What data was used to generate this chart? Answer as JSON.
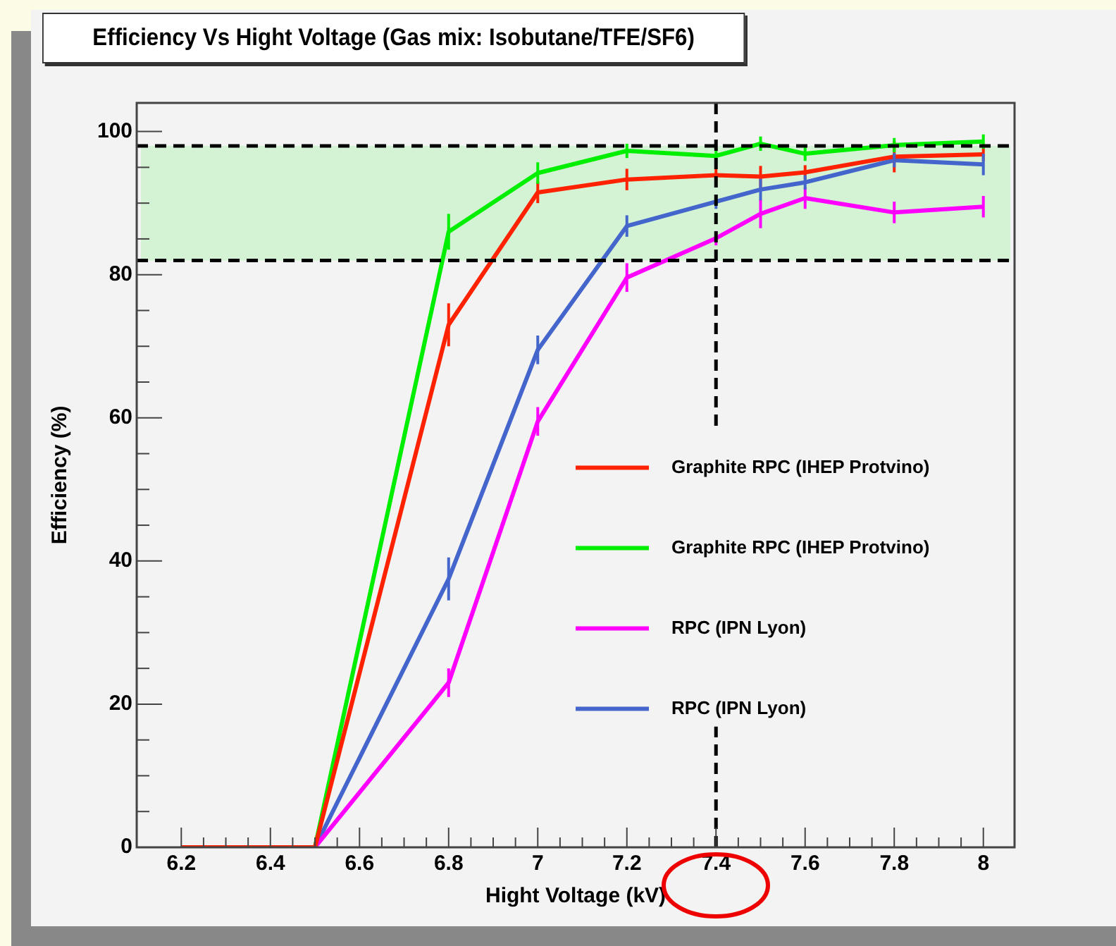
{
  "chart_data": {
    "type": "line",
    "title": "Efficiency Vs Hight Voltage (Gas mix: Isobutane/TFE/SF6)",
    "xlabel": "Hight Voltage (kV)",
    "ylabel": "Efficiency (%)",
    "xlim": [
      6.1,
      8.07
    ],
    "xticks": [
      6.2,
      6.4,
      6.6,
      6.8,
      {
        "value": 7,
        "label": "7"
      },
      7.2,
      7.4,
      7.6,
      7.8,
      {
        "value": 8,
        "label": "8"
      }
    ],
    "ylim": [
      0,
      104
    ],
    "yticks": [
      0,
      20,
      40,
      60,
      80,
      100
    ],
    "x": [
      6.2,
      6.5,
      6.8,
      7.0,
      7.2,
      7.4,
      7.5,
      7.6,
      7.8,
      8.0
    ],
    "series": [
      {
        "name": "Graphite RPC (IHEP Protvino)",
        "color": "#ff2200",
        "values": [
          0,
          0,
          73,
          91.5,
          93.3,
          93.9,
          93.7,
          94.3,
          96.5,
          96.8
        ],
        "errors": [
          null,
          null,
          3,
          1.5,
          1.5,
          1,
          1.5,
          1,
          2.2,
          1
        ]
      },
      {
        "name": "Graphite RPC (IHEP Protvino)",
        "color": "#00ee00",
        "values": [
          0,
          0,
          86,
          94.2,
          97.3,
          96.6,
          98.3,
          96.9,
          98.1,
          98.6
        ],
        "errors": [
          null,
          null,
          2.5,
          1.5,
          1,
          1,
          1,
          1,
          1,
          1
        ]
      },
      {
        "name": "RPC (IPN Lyon)",
        "color": "#ff00ff",
        "values": [
          0,
          0,
          23,
          59.5,
          79.6,
          85.1,
          88.5,
          90.7,
          88.7,
          89.5
        ],
        "errors": [
          null,
          null,
          2,
          2,
          2,
          1,
          2,
          1.5,
          1.5,
          1.5
        ]
      },
      {
        "name": "RPC (IPN Lyon)",
        "color": "#4466cc",
        "values": [
          0,
          0,
          37.5,
          69.5,
          86.8,
          90.2,
          91.9,
          92.9,
          96,
          95.4
        ],
        "errors": [
          null,
          null,
          3,
          2,
          1.5,
          1,
          1.5,
          1,
          1,
          1.5
        ]
      }
    ],
    "ref_lines": [
      {
        "axis": "y",
        "value": 98,
        "line_style": "dashed",
        "color": "#000000"
      },
      {
        "axis": "y",
        "value": 82,
        "line_style": "dashed",
        "color": "#000000"
      },
      {
        "axis": "x",
        "value": 7.4,
        "line_style": "dashed",
        "color": "#000000"
      }
    ],
    "bands": [
      {
        "axis": "y",
        "from": 82,
        "to": 98,
        "color": "#d4f2d4"
      }
    ],
    "legend": "right",
    "marker": "none",
    "line_style": "solid",
    "grid": false
  }
}
